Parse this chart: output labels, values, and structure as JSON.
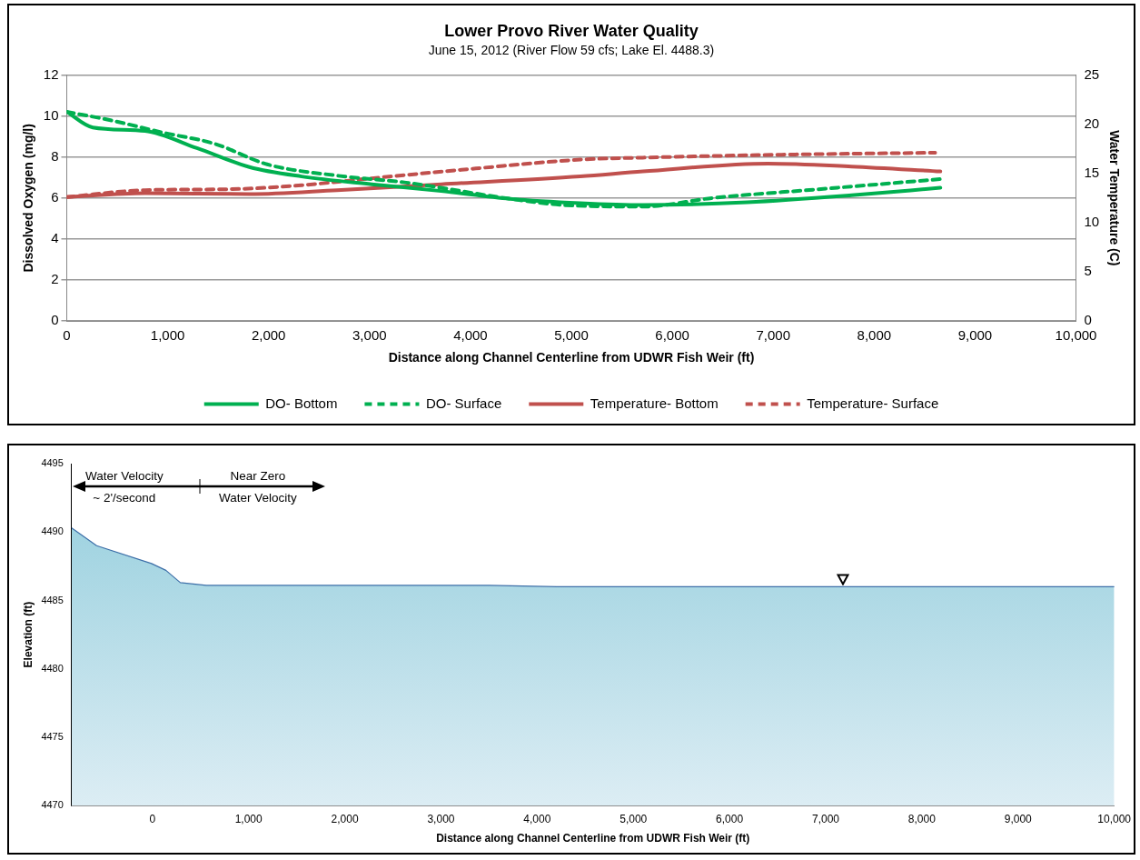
{
  "chart_data": [
    {
      "type": "line",
      "title": "Lower Provo River Water Quality",
      "subtitle": "June 15, 2012 (River Flow 59 cfs; Lake El. 4488.3)",
      "xlabel": "Distance along Channel Centerline from UDWR Fish Weir (ft)",
      "ylabel": "Dissolved Oxygen (mg/l)",
      "y2label": "Water Temperature (C)",
      "xlim": [
        0,
        10000
      ],
      "xticks": [
        0,
        {
          "value": 1000,
          "label": "1,000"
        },
        {
          "value": 2000,
          "label": "2,000"
        },
        {
          "value": 3000,
          "label": "3,000"
        },
        {
          "value": 4000,
          "label": "4,000"
        },
        {
          "value": 5000,
          "label": "5,000"
        },
        {
          "value": 6000,
          "label": "6,000"
        },
        {
          "value": 7000,
          "label": "7,000"
        },
        {
          "value": 8000,
          "label": "8,000"
        },
        {
          "value": 9000,
          "label": "9,000"
        },
        {
          "value": 10000,
          "label": "10,000"
        }
      ],
      "ylim": [
        0,
        12
      ],
      "yticks": [
        0,
        2,
        4,
        6,
        8,
        10,
        12
      ],
      "y2lim": [
        0,
        25
      ],
      "y2ticks": [
        0,
        5,
        10,
        15,
        20,
        25
      ],
      "grid": "y",
      "legend": "bottom",
      "marker": "none",
      "series": [
        {
          "name": "DO- Bottom",
          "color": "#00b050",
          "line_style": "solid",
          "x": [
            0,
            258,
            775,
            1290,
            1810,
            2327,
            3020,
            3710,
            4395,
            5088,
            5708,
            6742,
            7777,
            8656
          ],
          "values": [
            10.2,
            9.44,
            9.27,
            8.43,
            7.51,
            7.05,
            6.67,
            6.34,
            5.96,
            5.75,
            5.66,
            5.79,
            6.13,
            6.5
          ]
        },
        {
          "name": "DO- Surface",
          "color": "#00b050",
          "line_style": "dashed",
          "x": [
            0,
            434,
            951,
            1468,
            1986,
            2678,
            3361,
            4395,
            4912,
            5708,
            6401,
            7435,
            8656
          ],
          "values": [
            10.2,
            9.79,
            9.19,
            8.64,
            7.64,
            7.09,
            6.75,
            5.96,
            5.66,
            5.58,
            6.0,
            6.42,
            6.92
          ]
        },
        {
          "name": "Temperature- Bottom",
          "color": "#c0504d",
          "line_style": "solid",
          "axis": "y2",
          "x": [
            0,
            775,
            1810,
            2678,
            3712,
            5088,
            5708,
            6949,
            7777,
            8656
          ],
          "values": [
            12.6,
            13.0,
            12.9,
            13.3,
            13.9,
            14.7,
            15.2,
            16.0,
            15.7,
            15.2
          ]
        },
        {
          "name": "Temperature- Surface",
          "color": "#c0504d",
          "line_style": "dashed",
          "axis": "y2",
          "x": [
            0,
            775,
            1640,
            2327,
            3020,
            4054,
            5088,
            5708,
            7084,
            8605
          ],
          "values": [
            12.6,
            13.3,
            13.4,
            13.8,
            14.5,
            15.5,
            16.4,
            16.6,
            16.9,
            17.1
          ]
        }
      ]
    },
    {
      "type": "area",
      "xlabel": "Distance along Channel Centerline from UDWR Fish Weir (ft)",
      "ylabel": "Elevation (ft)",
      "xlim": [
        -840,
        10000
      ],
      "xticks": [
        0,
        {
          "value": 1000,
          "label": "1,000"
        },
        {
          "value": 2000,
          "label": "2,000"
        },
        {
          "value": 3000,
          "label": "3,000"
        },
        {
          "value": 4000,
          "label": "4,000"
        },
        {
          "value": 5000,
          "label": "5,000"
        },
        {
          "value": 6000,
          "label": "6,000"
        },
        {
          "value": 7000,
          "label": "7,000"
        },
        {
          "value": 8000,
          "label": "8,000"
        },
        {
          "value": 9000,
          "label": "9,000"
        },
        {
          "value": 10000,
          "label": "10,000"
        }
      ],
      "ylim": [
        4470,
        4495
      ],
      "yticks": [
        4470,
        4475,
        4480,
        4485,
        4490,
        4495
      ],
      "grid": false,
      "legend": false,
      "marker": "none",
      "series": [
        {
          "color": "#92cddc",
          "x": [
            -840,
            -580,
            -10,
            140,
            290,
            560,
            3500,
            4200,
            10000
          ],
          "values": [
            4490.3,
            4489.0,
            4487.7,
            4487.2,
            4486.3,
            4486.1,
            4486.1,
            4486.0,
            4486.0
          ]
        }
      ],
      "annotations": [
        "Water Velocity",
        "~ 2'/second",
        "Near Zero",
        "Water Velocity"
      ]
    }
  ]
}
